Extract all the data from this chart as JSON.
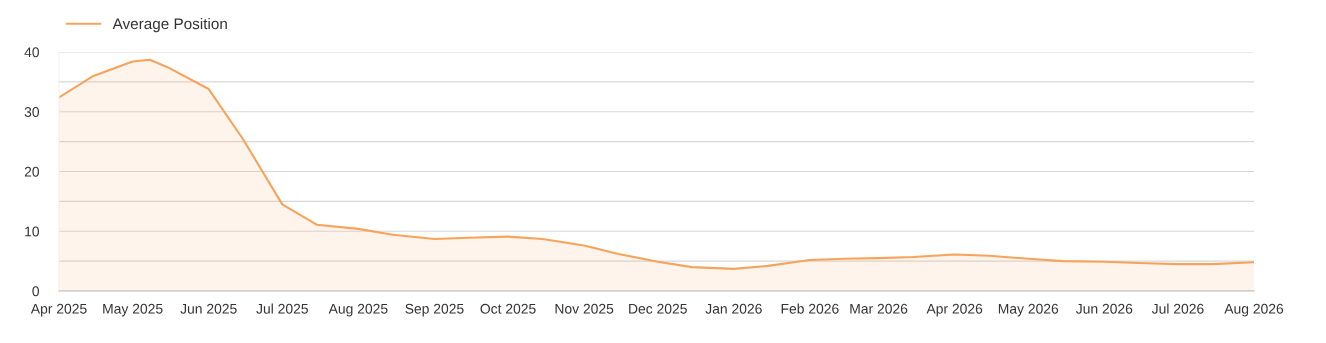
{
  "chart_data": {
    "type": "area",
    "x": [
      "2025-04-01",
      "2025-04-15",
      "2025-05-01",
      "2025-05-08",
      "2025-05-15",
      "2025-06-01",
      "2025-06-15",
      "2025-07-01",
      "2025-07-15",
      "2025-08-01",
      "2025-08-15",
      "2025-09-01",
      "2025-09-15",
      "2025-10-01",
      "2025-10-15",
      "2025-11-01",
      "2025-11-15",
      "2025-12-01",
      "2025-12-15",
      "2026-01-01",
      "2026-01-15",
      "2026-02-01",
      "2026-02-15",
      "2026-03-01",
      "2026-03-15",
      "2026-04-01",
      "2026-04-15",
      "2026-05-01",
      "2026-05-15",
      "2026-06-01",
      "2026-06-15",
      "2026-07-01",
      "2026-07-15",
      "2026-08-01"
    ],
    "series": [
      {
        "name": "Average Position",
        "color": "#f7a35c",
        "values": [
          32.4,
          36.0,
          38.4,
          38.7,
          37.5,
          33.8,
          25.4,
          14.5,
          11.1,
          10.4,
          9.4,
          8.7,
          8.9,
          9.1,
          8.7,
          7.6,
          6.2,
          4.9,
          4.0,
          3.7,
          4.2,
          5.2,
          5.4,
          5.5,
          5.7,
          6.1,
          5.9,
          5.4,
          5.0,
          4.9,
          4.7,
          4.5,
          4.5,
          4.8
        ]
      }
    ],
    "xlim": [
      "2025-04-01",
      "2026-08-01"
    ],
    "xticks": [
      {
        "value": "2025-04-01",
        "label": "Apr 2025"
      },
      {
        "value": "2025-05-01",
        "label": "May 2025"
      },
      {
        "value": "2025-06-01",
        "label": "Jun 2025"
      },
      {
        "value": "2025-07-01",
        "label": "Jul 2025"
      },
      {
        "value": "2025-08-01",
        "label": "Aug 2025"
      },
      {
        "value": "2025-09-01",
        "label": "Sep 2025"
      },
      {
        "value": "2025-10-01",
        "label": "Oct 2025"
      },
      {
        "value": "2025-11-01",
        "label": "Nov 2025"
      },
      {
        "value": "2025-12-01",
        "label": "Dec 2025"
      },
      {
        "value": "2026-01-01",
        "label": "Jan 2026"
      },
      {
        "value": "2026-02-01",
        "label": "Feb 2026"
      },
      {
        "value": "2026-03-01",
        "label": "Mar 2026"
      },
      {
        "value": "2026-04-01",
        "label": "Apr 2026"
      },
      {
        "value": "2026-05-01",
        "label": "May 2026"
      },
      {
        "value": "2026-06-01",
        "label": "Jun 2026"
      },
      {
        "value": "2026-07-01",
        "label": "Jul 2026"
      },
      {
        "value": "2026-08-01",
        "label": "Aug 2026"
      }
    ],
    "ylim": [
      0,
      40
    ],
    "yticks": [
      0,
      {
        "value": 5,
        "label": null
      },
      10,
      {
        "value": 15,
        "label": null
      },
      20,
      {
        "value": 25,
        "label": null
      },
      30,
      {
        "value": 35,
        "label": null
      },
      40
    ],
    "grid": "y",
    "legend": "top left",
    "marker": "none",
    "line_style": "solid"
  }
}
